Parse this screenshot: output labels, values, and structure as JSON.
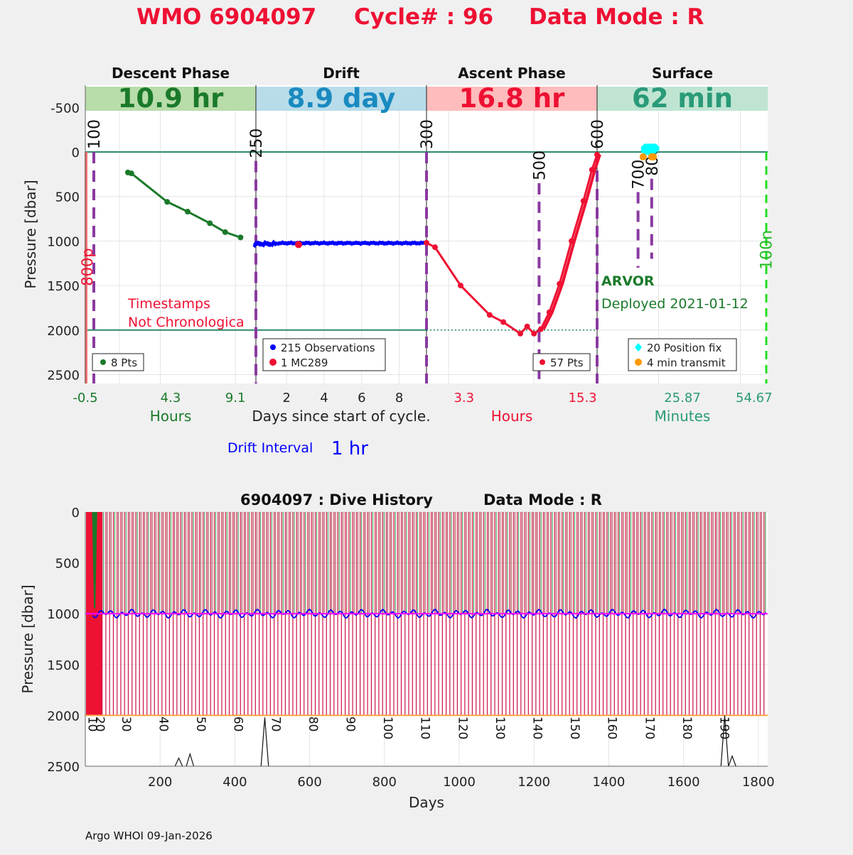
{
  "title": {
    "wmo": "WMO 6904097",
    "cycle": "Cycle# : 96",
    "mode": "Data Mode : R"
  },
  "colors": {
    "red": "#ee1133",
    "green": "#1a7a2a",
    "teal": "#2a9a78",
    "blue": "#0000ff",
    "purple": "#8a3aa0",
    "cyan": "#00ffff",
    "orange": "#ff9900",
    "magenta": "#ff00ff"
  },
  "chart_data": [
    {
      "type": "line",
      "ylabel": "Pressure [dbar]",
      "ylim": [
        -750,
        2600
      ],
      "yticks": [
        "-500",
        "0",
        "500",
        "1000",
        "1500",
        "2000",
        "2500"
      ],
      "ytick_values": [
        -500,
        0,
        500,
        1000,
        1500,
        2000,
        2500
      ],
      "panels": [
        {
          "phase": "Descent Phase",
          "duration": "10.9 hr",
          "band_color": "#b8dcaa",
          "text_color": "#1a7a2a",
          "xtick_labels": [
            "-0.5",
            "4.3",
            "9.1"
          ],
          "xlabel": "Hours",
          "xlabel_color": "#1a7a2a",
          "legend": [
            "8 Pts"
          ],
          "series": {
            "name": "Descent",
            "x_frac": [
              0.25,
              0.27,
              0.48,
              0.6,
              0.73,
              0.82,
              0.91
            ],
            "pressure": [
              230,
              240,
              560,
              670,
              800,
              900,
              960
            ]
          },
          "markers": [
            {
              "label": "100",
              "x_frac": 0.05
            },
            {
              "label": "250",
              "x_frac": 1.0
            }
          ],
          "annotation": [
            "Timestamps",
            "Not Chronologica"
          ]
        },
        {
          "phase": "Drift",
          "duration": "8.9 day",
          "band_color": "#b8dcea",
          "text_color": "#1a8ac0",
          "xtick_labels": [
            "2",
            "4",
            "6",
            "8"
          ],
          "xlabel": "Days since start of cycle.",
          "legend": [
            "215 Observations",
            "1 MC289"
          ],
          "series": {
            "name": "Drift",
            "start_frac": 0.0,
            "end_frac": 1.0,
            "pressure_range": [
              1015,
              1050
            ]
          },
          "mc289": {
            "x_frac": 0.25,
            "pressure": 1040
          }
        },
        {
          "phase": "Ascent Phase",
          "duration": "16.8 hr",
          "band_color": "#ffbcbc",
          "text_color": "#ee1133",
          "xtick_labels": [
            "3.3",
            "15.3"
          ],
          "xlabel": "Hours",
          "xlabel_color": "#ee1133",
          "legend": [
            "57 Pts"
          ],
          "series": {
            "name": "Ascent",
            "x_frac": [
              0.0,
              0.05,
              0.2,
              0.37,
              0.45,
              0.55,
              0.59,
              0.63,
              0.67,
              0.72,
              0.78,
              0.85,
              0.92,
              0.97,
              1.0
            ],
            "pressure": [
              1020,
              1070,
              1500,
              1830,
              1910,
              2040,
              1960,
              2040,
              1990,
              1800,
              1480,
              1000,
              550,
              200,
              30
            ]
          },
          "markers": [
            {
              "label": "300",
              "x_frac": 0.0
            },
            {
              "label": "500",
              "x_frac": 0.66
            },
            {
              "label": "600",
              "x_frac": 1.0
            }
          ]
        },
        {
          "phase": "Surface",
          "duration": "62 min",
          "band_color": "#bfe5d2",
          "text_color": "#2a9a78",
          "xtick_labels": [
            "25.87",
            "54.67"
          ],
          "xlabel": "Minutes",
          "xlabel_color": "#2a9a78",
          "legend": [
            "20 Position fix",
            "4 min transmit"
          ],
          "markers": [
            {
              "label": "700",
              "x_frac": 0.24
            },
            {
              "label": "800",
              "x_frac": 0.32
            },
            {
              "label": "100n",
              "x_frac": 0.99
            }
          ],
          "info": [
            "ARVOR",
            "Deployed 2021-01-12"
          ]
        }
      ],
      "left_marker": "800p",
      "drift_interval_label": "Drift Interval",
      "drift_interval_value": "1 hr"
    },
    {
      "type": "line",
      "title_left": "6904097 : Dive History",
      "title_right": "Data Mode : R",
      "xlabel": "Days",
      "ylabel": "Pressure [dbar]",
      "xlim": [
        0,
        1825
      ],
      "ylim": [
        0,
        2500
      ],
      "xticks": [
        200,
        400,
        600,
        800,
        1000,
        1200,
        1400,
        1600,
        1800
      ],
      "yticks": [
        0,
        500,
        1000,
        1500,
        2000,
        2500
      ],
      "cycle_labels": [
        {
          "label": "10",
          "day": 20
        },
        {
          "label": "20",
          "day": 40
        },
        {
          "label": "30",
          "day": 110
        },
        {
          "label": "40",
          "day": 210
        },
        {
          "label": "50",
          "day": 310
        },
        {
          "label": "60",
          "day": 410
        },
        {
          "label": "70",
          "day": 510
        },
        {
          "label": "80",
          "day": 610
        },
        {
          "label": "90",
          "day": 710
        },
        {
          "label": "100",
          "day": 810
        },
        {
          "label": "110",
          "day": 910
        },
        {
          "label": "120",
          "day": 1010
        },
        {
          "label": "130",
          "day": 1110
        },
        {
          "label": "140",
          "day": 1210
        },
        {
          "label": "150",
          "day": 1310
        },
        {
          "label": "160",
          "day": 1410
        },
        {
          "label": "170",
          "day": 1510
        },
        {
          "label": "180",
          "day": 1610
        },
        {
          "label": "190",
          "day": 1710
        }
      ],
      "park_pressure": 1000,
      "profile_pressure": 2000,
      "cycle_start_day": 45,
      "cycle_interval_days": 10,
      "cycle_end_day": 1820
    }
  ],
  "footer": "Argo WHOI 09-Jan-2026"
}
